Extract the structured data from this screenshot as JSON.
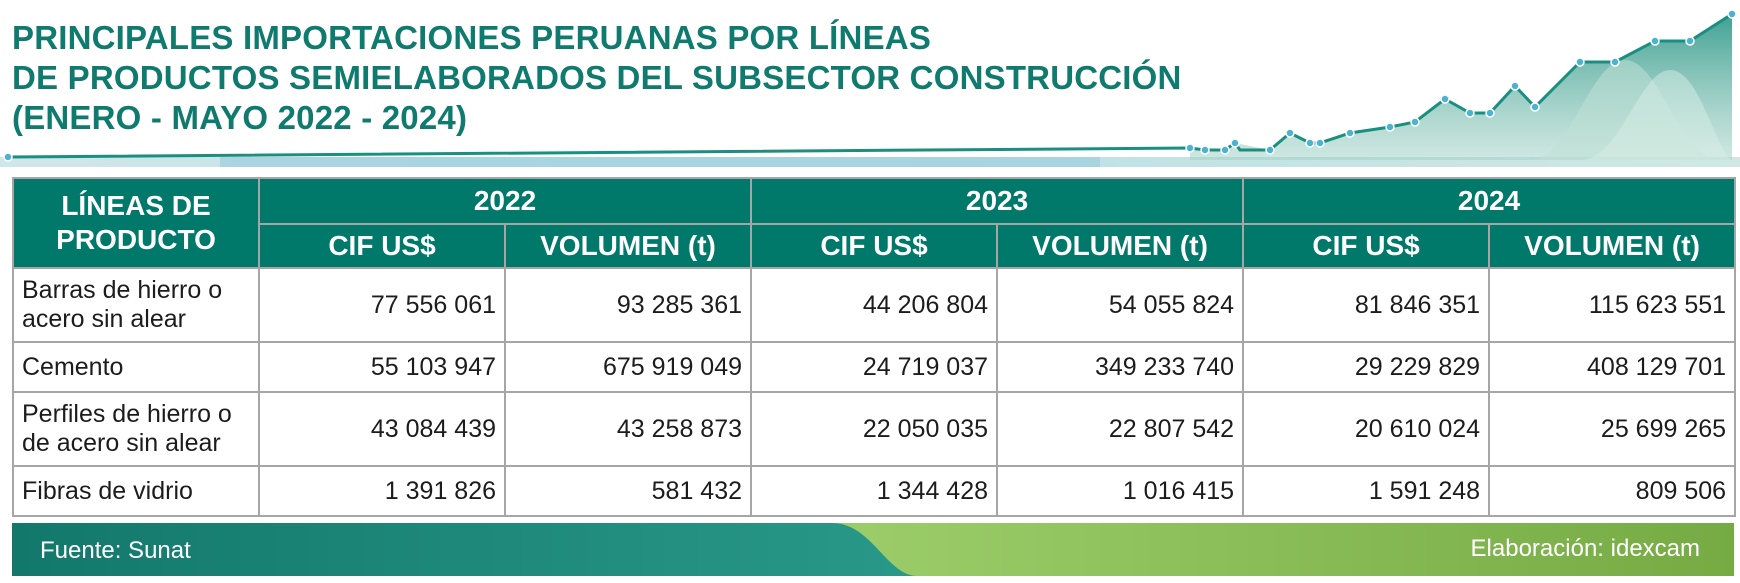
{
  "title": {
    "line1": "PRINCIPALES IMPORTACIONES PERUANAS POR LÍNEAS",
    "line2": "DE PRODUCTOS SEMIELABORADOS DEL SUBSECTOR CONSTRUCCIÓN",
    "line3": "(ENERO - MAYO 2022 - 2024)"
  },
  "colors": {
    "header_bg": "#00786a",
    "title": "#0f7b6e",
    "footer_left": "#13786c",
    "footer_right": "#7db14a"
  },
  "table": {
    "corner_header_line1": "LÍNEAS DE",
    "corner_header_line2": "PRODUCTO",
    "years": [
      "2022",
      "2023",
      "2024"
    ],
    "subcolumns": [
      "CIF US$",
      "VOLUMEN (t)",
      "CIF US$",
      "VOLUMEN (t)",
      "CIF US$",
      "VOLUMEN (t)"
    ],
    "rows": [
      {
        "name": "Barras de hierro o acero sin alear",
        "values": [
          "77 556 061",
          "93 285 361",
          "44 206 804",
          "54 055 824",
          "81 846 351",
          "115 623 551"
        ]
      },
      {
        "name": "Cemento",
        "values": [
          "55 103 947",
          "675 919 049",
          "24 719 037",
          "349 233 740",
          "29 229 829",
          "408 129 701"
        ]
      },
      {
        "name": "Perfiles de hierro o de acero sin alear",
        "values": [
          "43 084 439",
          "43 258 873",
          "22 050 035",
          "22 807 542",
          "20 610 024",
          "25 699 265"
        ]
      },
      {
        "name": "Fibras de vidrio",
        "values": [
          "1 391 826",
          "581 432",
          "1 344 428",
          "1 016 415",
          "1 591 248",
          "809 506"
        ]
      }
    ]
  },
  "footer": {
    "source": "Fuente: Sunat",
    "credit": "Elaboración: idexcam"
  }
}
